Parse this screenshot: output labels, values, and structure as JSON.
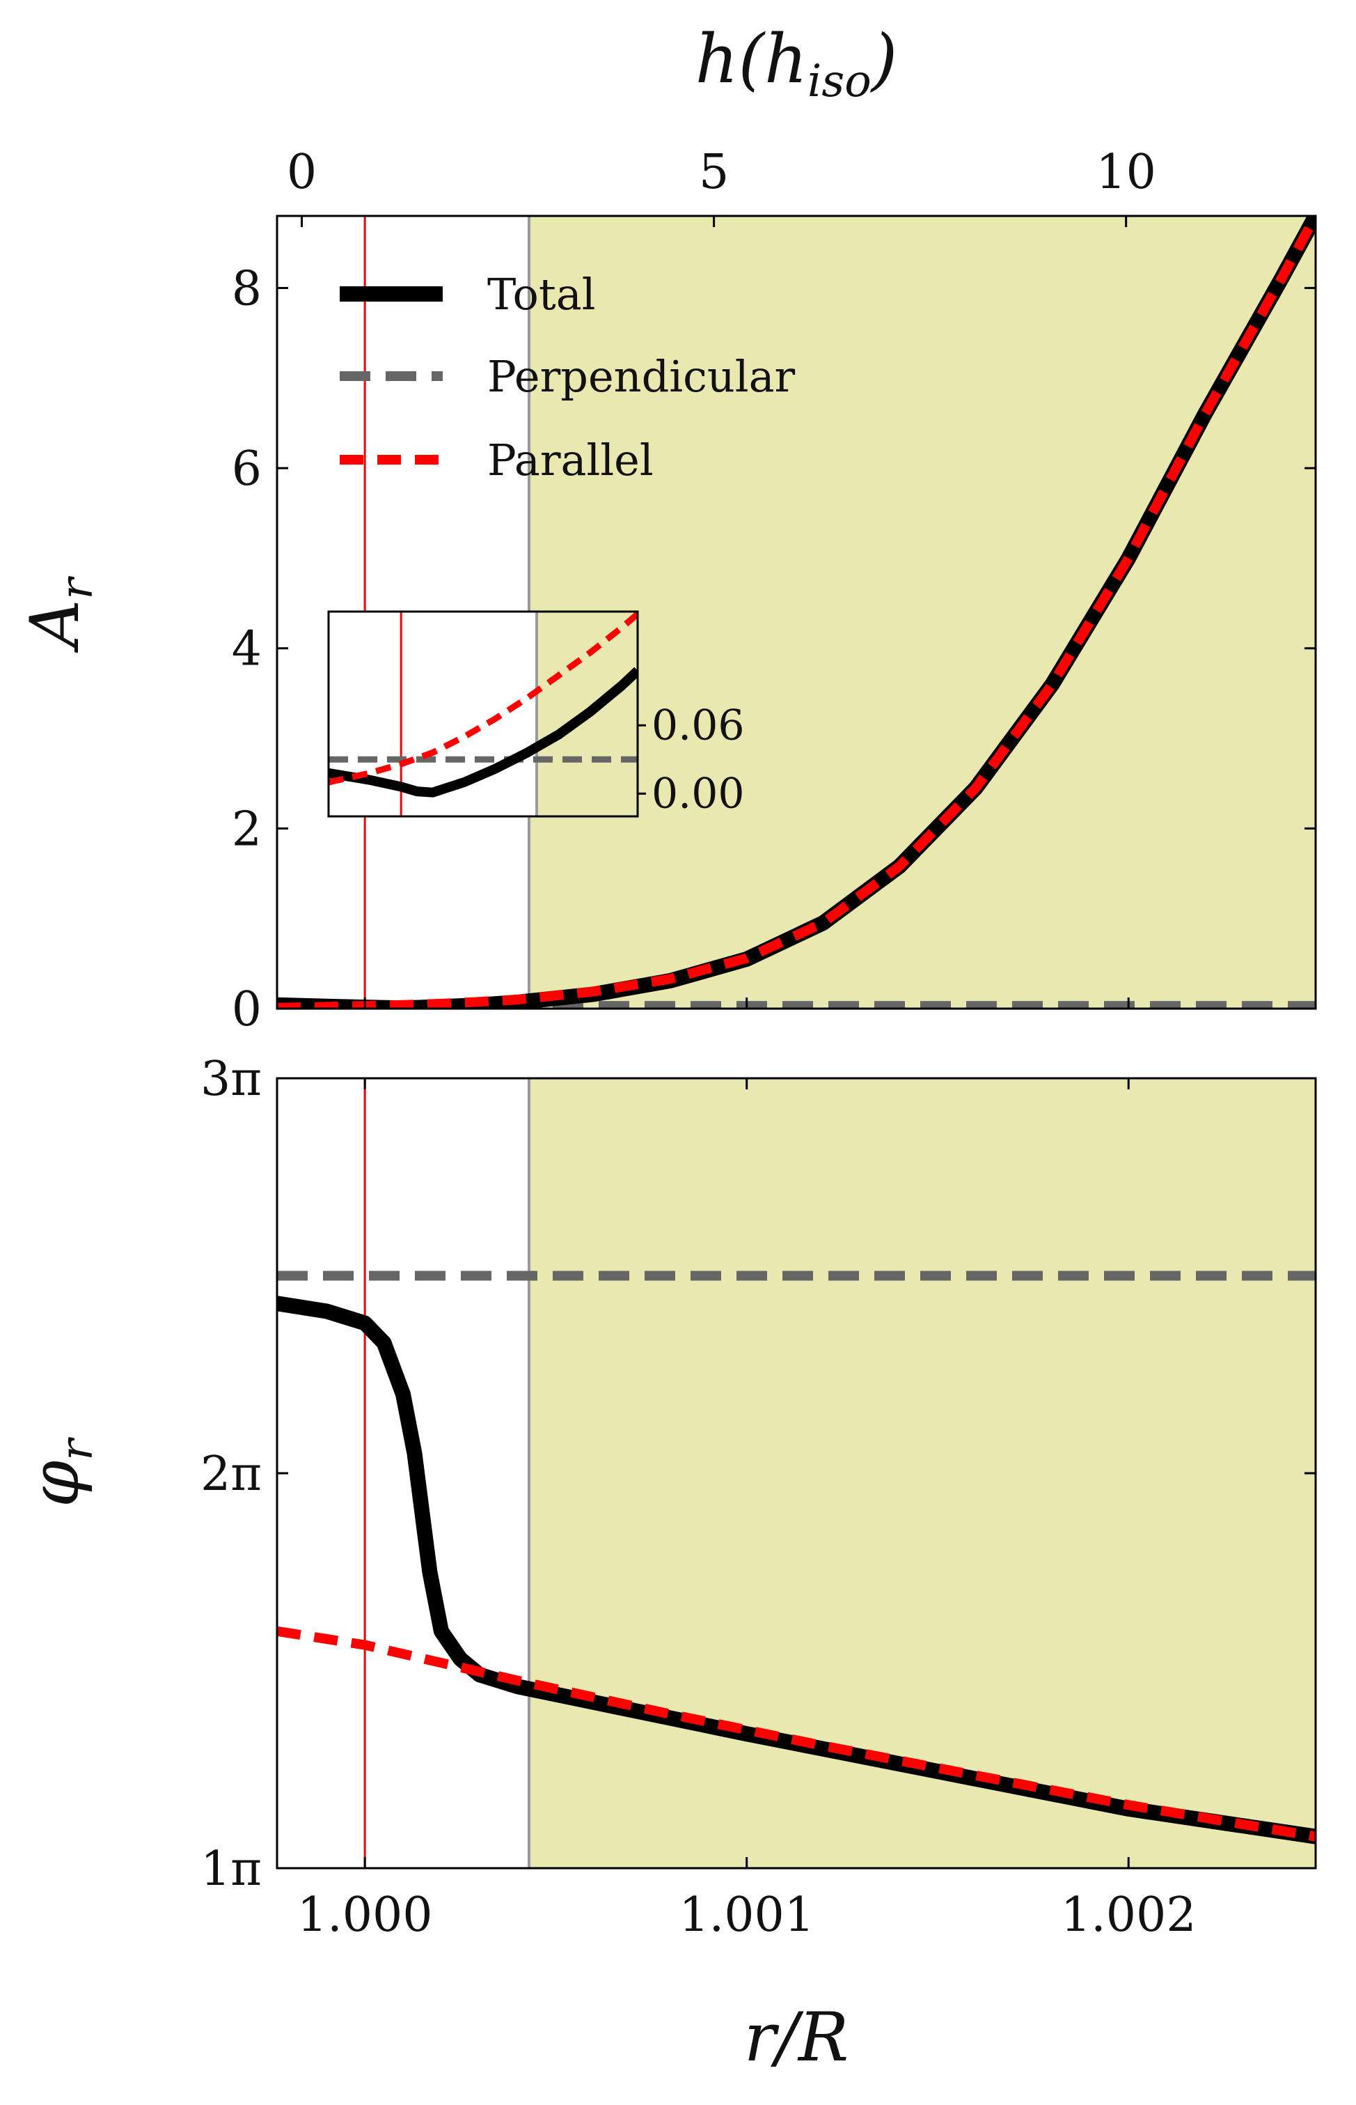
{
  "chart_data": [
    {
      "panel": "top",
      "type": "line",
      "xlabel": "r/R",
      "top_xlabel": "h(h_iso)",
      "top_xlabel_main": "h(h",
      "top_xlabel_sub": "iso",
      "top_xlabel_close": ")",
      "ylabel_main": "A",
      "ylabel_sub": "r",
      "xlim": [
        0.99977,
        1.00249
      ],
      "ylim": [
        0,
        8.8
      ],
      "top_xlim": [
        -0.3,
        12.3
      ],
      "yticks": [
        0,
        2,
        4,
        6,
        8
      ],
      "ytick_labels": [
        "0",
        "2",
        "4",
        "6",
        "8"
      ],
      "top_xticks": [
        0,
        5,
        10
      ],
      "top_xtick_labels": [
        "0",
        "5",
        "10"
      ],
      "shade_from_x": 1.00043,
      "shade_color": "#e9e8b0",
      "red_vline_x": 1.0,
      "gray_vline_x": 1.00043,
      "legend": {
        "placement": "top-left",
        "entries": [
          {
            "label": "Total",
            "color": "#000000",
            "style": "solid"
          },
          {
            "label": "Perpendicular",
            "color": "#666666",
            "style": "dashed"
          },
          {
            "label": "Parallel",
            "color": "#ff0000",
            "style": "dashed"
          }
        ]
      },
      "series": [
        {
          "name": "Total",
          "color": "#000000",
          "x": [
            0.99977,
            0.9999,
            1.0,
            1.0001,
            1.0002,
            1.0003,
            1.0004,
            1.0006,
            1.0008,
            1.001,
            1.0012,
            1.0014,
            1.0016,
            1.0018,
            1.002,
            1.0022,
            1.0024,
            1.00249
          ],
          "y": [
            0.04,
            0.025,
            0.015,
            0.006,
            0.02,
            0.04,
            0.07,
            0.16,
            0.31,
            0.55,
            0.95,
            1.58,
            2.45,
            3.6,
            5.0,
            6.6,
            8.1,
            8.8
          ]
        },
        {
          "name": "Perpendicular",
          "color": "#666666",
          "x": [
            0.99977,
            1.00249
          ],
          "y": [
            0.03,
            0.03
          ]
        },
        {
          "name": "Parallel",
          "color": "#ff0000",
          "x": [
            0.99977,
            0.9999,
            1.0,
            1.0001,
            1.0002,
            1.0003,
            1.0004,
            1.0006,
            1.0008,
            1.001,
            1.0012,
            1.0014,
            1.0016,
            1.0018,
            1.002,
            1.0022,
            1.0024,
            1.00249
          ],
          "y": [
            0.01,
            0.02,
            0.03,
            0.04,
            0.055,
            0.075,
            0.1,
            0.19,
            0.33,
            0.56,
            0.95,
            1.58,
            2.45,
            3.6,
            5.0,
            6.6,
            8.1,
            8.8
          ]
        }
      ],
      "inset": {
        "xlim": [
          0.99977,
          1.00075
        ],
        "ylim": [
          -0.02,
          0.16
        ],
        "yticks": [
          0.0,
          0.06
        ],
        "ytick_labels": [
          "0.00",
          "0.06"
        ],
        "series": [
          {
            "name": "Total",
            "x": [
              0.99977,
              0.9999,
              1.0,
              1.00005,
              1.0001,
              1.0002,
              1.0003,
              1.0004,
              1.0005,
              1.0006,
              1.0007,
              1.00075
            ],
            "y": [
              0.018,
              0.012,
              0.006,
              0.002,
              0.001,
              0.01,
              0.022,
              0.036,
              0.052,
              0.072,
              0.095,
              0.108
            ]
          },
          {
            "name": "Perpendicular",
            "x": [
              0.99977,
              1.00075
            ],
            "y": [
              0.03,
              0.03
            ]
          },
          {
            "name": "Parallel",
            "x": [
              0.99977,
              0.9999,
              1.0,
              1.0001,
              1.0002,
              1.0003,
              1.0004,
              1.0005,
              1.0006,
              1.0007,
              1.00075
            ],
            "y": [
              0.01,
              0.018,
              0.026,
              0.036,
              0.05,
              0.066,
              0.084,
              0.104,
              0.124,
              0.146,
              0.158
            ]
          }
        ]
      }
    },
    {
      "panel": "bottom",
      "type": "line",
      "xlabel": "r/R",
      "ylabel_main": "φ",
      "ylabel_sub": "r",
      "xlim": [
        0.99977,
        1.00249
      ],
      "ylim": [
        1.0,
        3.0
      ],
      "units": "π",
      "xticks": [
        1.0,
        1.001,
        1.002
      ],
      "xtick_labels": [
        "1.000",
        "1.001",
        "1.002"
      ],
      "yticks": [
        1,
        2,
        3
      ],
      "ytick_labels": [
        "1π",
        "2π",
        "3π"
      ],
      "shade_from_x": 1.00043,
      "shade_color": "#e9e8b0",
      "red_vline_x": 1.0,
      "gray_vline_x": 1.00043,
      "series": [
        {
          "name": "Total",
          "color": "#000000",
          "x": [
            0.99977,
            0.9999,
            1.0,
            1.00005,
            1.0001,
            1.00013,
            1.00015,
            1.00017,
            1.0002,
            1.00025,
            1.0003,
            1.0004,
            1.0006,
            1.001,
            1.0015,
            1.002,
            1.00249
          ],
          "y": [
            2.43,
            2.41,
            2.38,
            2.33,
            2.2,
            2.05,
            1.9,
            1.75,
            1.6,
            1.53,
            1.49,
            1.46,
            1.42,
            1.34,
            1.245,
            1.15,
            1.08
          ]
        },
        {
          "name": "Perpendicular",
          "color": "#666666",
          "x": [
            0.99977,
            1.00249
          ],
          "y": [
            2.5,
            2.5
          ]
        },
        {
          "name": "Parallel",
          "color": "#ff0000",
          "x": [
            0.99977,
            1.0,
            1.0002,
            1.0004,
            1.0008,
            1.0012,
            1.0016,
            1.002,
            1.00249
          ],
          "y": [
            1.6,
            1.565,
            1.52,
            1.475,
            1.39,
            1.31,
            1.235,
            1.16,
            1.08
          ]
        }
      ]
    }
  ]
}
